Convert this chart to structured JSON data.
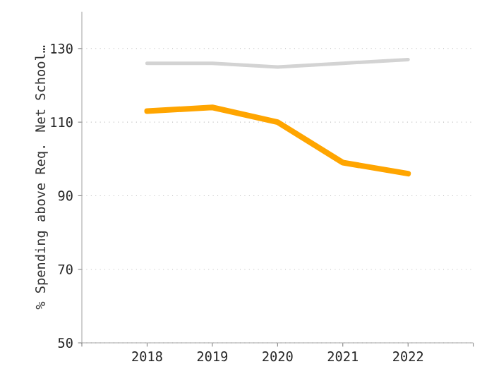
{
  "chart_data": {
    "type": "line",
    "ylabel": "% Spending above Req. Net School…",
    "x": [
      2018,
      2019,
      2020,
      2021,
      2022
    ],
    "series": [
      {
        "color": "#d3d3d3",
        "values": [
          126,
          126,
          125,
          126,
          127
        ]
      },
      {
        "color": "#ffa500",
        "values": [
          113,
          114,
          110,
          99,
          96
        ]
      }
    ],
    "xlim": [
      2017,
      2023
    ],
    "xticks": [
      {
        "value": 2017,
        "label": null
      },
      2018,
      2019,
      2020,
      2021,
      2022,
      {
        "value": 2023,
        "label": null
      }
    ],
    "ylim": [
      50,
      140
    ],
    "yticks": [
      50,
      70,
      90,
      110,
      130
    ],
    "grid": "y",
    "marker": "none",
    "line_style": "solid"
  }
}
